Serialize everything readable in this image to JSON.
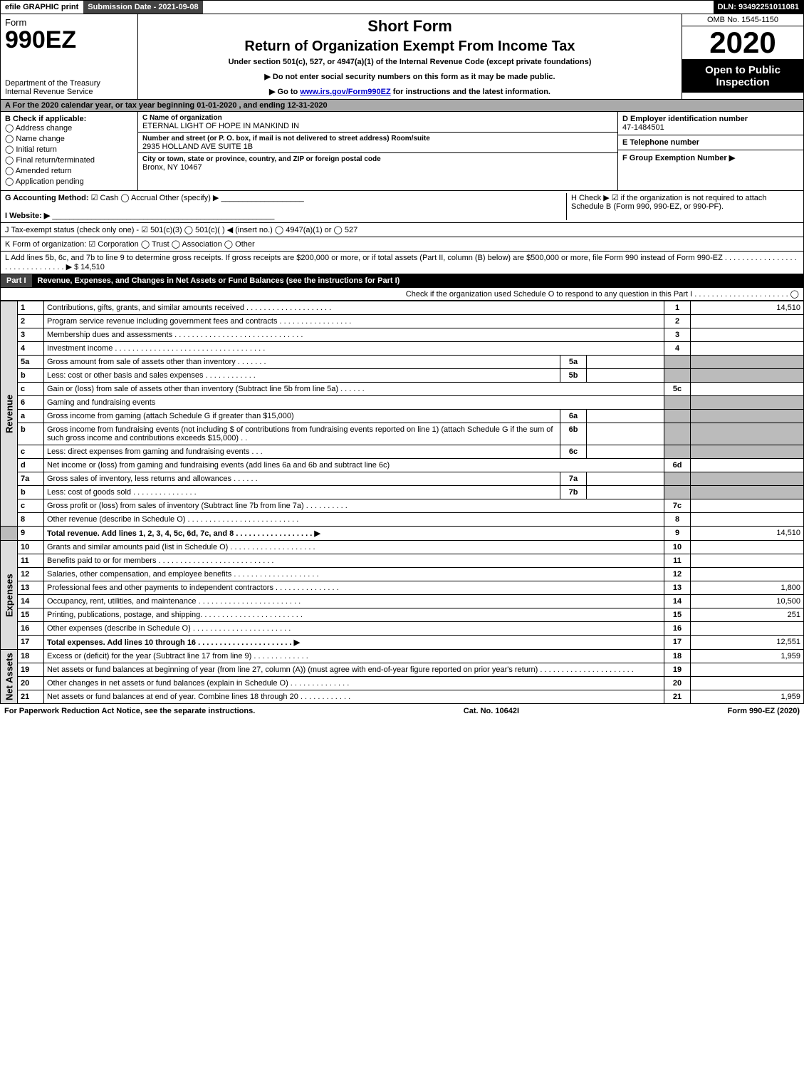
{
  "topbar": {
    "efile": "efile GRAPHIC print",
    "subdate": "Submission Date - 2021-09-08",
    "dln": "DLN: 93492251011081"
  },
  "header": {
    "form_label": "Form",
    "form_number": "990EZ",
    "dept": "Department of the Treasury\nInternal Revenue Service",
    "short_form": "Short Form",
    "title": "Return of Organization Exempt From Income Tax",
    "subtitle": "Under section 501(c), 527, or 4947(a)(1) of the Internal Revenue Code (except private foundations)",
    "note1": "▶ Do not enter social security numbers on this form as it may be made public.",
    "note2_pre": "▶ Go to ",
    "note2_link": "www.irs.gov/Form990EZ",
    "note2_post": " for instructions and the latest information.",
    "omb": "OMB No. 1545-1150",
    "year": "2020",
    "open_public": "Open to Public Inspection"
  },
  "rowA": "A  For the 2020 calendar year, or tax year beginning 01-01-2020 , and ending 12-31-2020",
  "B": {
    "header": "B  Check if applicable:",
    "items": [
      "Address change",
      "Name change",
      "Initial return",
      "Final return/terminated",
      "Amended return",
      "Application pending"
    ]
  },
  "C": {
    "name_label": "C Name of organization",
    "name": "ETERNAL LIGHT OF HOPE IN MANKIND IN",
    "addr_label": "Number and street (or P. O. box, if mail is not delivered to street address)      Room/suite",
    "addr": "2935 HOLLAND AVE SUITE 1B",
    "city_label": "City or town, state or province, country, and ZIP or foreign postal code",
    "city": "Bronx, NY  10467"
  },
  "D": {
    "ein_label": "D Employer identification number",
    "ein": "47-1484501",
    "phone_label": "E Telephone number",
    "group_label": "F Group Exemption Number   ▶"
  },
  "G": {
    "label": "G Accounting Method:",
    "options": "☑ Cash  ◯ Accrual   Other (specify) ▶",
    "H": "H   Check ▶  ☑  if the organization is not required to attach Schedule B (Form 990, 990-EZ, or 990-PF)."
  },
  "I": {
    "label": "I Website: ▶"
  },
  "J": {
    "label": "J Tax-exempt status (check only one) -  ☑ 501(c)(3) ◯ 501(c)(  ) ◀ (insert no.) ◯ 4947(a)(1) or ◯ 527"
  },
  "K": {
    "label": "K Form of organization:   ☑ Corporation  ◯ Trust  ◯ Association  ◯ Other"
  },
  "L": {
    "text": "L Add lines 5b, 6c, and 7b to line 9 to determine gross receipts. If gross receipts are $200,000 or more, or if total assets (Part II, column (B) below) are $500,000 or more, file Form 990 instead of Form 990-EZ  . . . . . . . . . . . . . . . . . . . . . . . . . . . . . . .  ▶ $ 14,510"
  },
  "partI": {
    "tag": "Part I",
    "title": "Revenue, Expenses, and Changes in Net Assets or Fund Balances (see the instructions for Part I)",
    "sub": "Check if the organization used Schedule O to respond to any question in this Part I . . . . . . . . . . . . . . . . . . . . . .  ◯"
  },
  "sections": {
    "revenue": "Revenue",
    "expenses": "Expenses",
    "netassets": "Net Assets"
  },
  "lines": {
    "1": {
      "d": "Contributions, gifts, grants, and similar amounts received  . . . . . . . . . . . . . . . . . . . .",
      "n": "1",
      "a": "14,510"
    },
    "2": {
      "d": "Program service revenue including government fees and contracts  . . . . . . . . . . . . . . . . .",
      "n": "2",
      "a": ""
    },
    "3": {
      "d": "Membership dues and assessments  . . . . . . . . . . . . . . . . . . . . . . . . . . . . . .",
      "n": "3",
      "a": ""
    },
    "4": {
      "d": "Investment income  . . . . . . . . . . . . . . . . . . . . . . . . . . . . . . . . . . .",
      "n": "4",
      "a": ""
    },
    "5a": {
      "d": "Gross amount from sale of assets other than inventory  . . . . . . .",
      "s": "5a"
    },
    "5b": {
      "d": "Less: cost or other basis and sales expenses  . . . . . . . . . . . .",
      "s": "5b"
    },
    "5c": {
      "d": "Gain or (loss) from sale of assets other than inventory (Subtract line 5b from line 5a)  . . . . . .",
      "n": "5c",
      "a": ""
    },
    "6": {
      "d": "Gaming and fundraising events"
    },
    "6a": {
      "d": "Gross income from gaming (attach Schedule G if greater than $15,000)",
      "s": "6a"
    },
    "6b": {
      "d": "Gross income from fundraising events (not including $                     of contributions from fundraising events reported on line 1) (attach Schedule G if the sum of such gross income and contributions exceeds $15,000)    .   .",
      "s": "6b"
    },
    "6c": {
      "d": "Less: direct expenses from gaming and fundraising events       .   .   .",
      "s": "6c"
    },
    "6d": {
      "d": "Net income or (loss) from gaming and fundraising events (add lines 6a and 6b and subtract line 6c)",
      "n": "6d",
      "a": ""
    },
    "7a": {
      "d": "Gross sales of inventory, less returns and allowances  . . . . . .",
      "s": "7a"
    },
    "7b": {
      "d": "Less: cost of goods sold        .   .   .   .   .   .   .   .   .   .   .   .   .   .   .",
      "s": "7b"
    },
    "7c": {
      "d": "Gross profit or (loss) from sales of inventory (Subtract line 7b from line 7a)  . . . . . . . . . .",
      "n": "7c",
      "a": ""
    },
    "8": {
      "d": "Other revenue (describe in Schedule O)  . . . . . . . . . . . . . . . . . . . . . . . . . .",
      "n": "8",
      "a": ""
    },
    "9": {
      "d": "Total revenue. Add lines 1, 2, 3, 4, 5c, 6d, 7c, and 8   . . . . . . . . . . . . . . . . . .   ▶",
      "n": "9",
      "a": "14,510",
      "bold": true
    },
    "10": {
      "d": "Grants and similar amounts paid (list in Schedule O)  . . . . . . . . . . . . . . . . . . . .",
      "n": "10",
      "a": ""
    },
    "11": {
      "d": "Benefits paid to or for members       . . . . . . . . . . . . . . . . . . . . . . . . . . .",
      "n": "11",
      "a": ""
    },
    "12": {
      "d": "Salaries, other compensation, and employee benefits  . . . . . . . . . . . . . . . . . . . .",
      "n": "12",
      "a": ""
    },
    "13": {
      "d": "Professional fees and other payments to independent contractors  . . . . . . . . . . . . . . .",
      "n": "13",
      "a": "1,800"
    },
    "14": {
      "d": "Occupancy, rent, utilities, and maintenance  . . . . . . . . . . . . . . . . . . . . . . . .",
      "n": "14",
      "a": "10,500"
    },
    "15": {
      "d": "Printing, publications, postage, and shipping.   . . . . . . . . . . . . . . . . . . . . . . .",
      "n": "15",
      "a": "251"
    },
    "16": {
      "d": "Other expenses (describe in Schedule O)       . . . . . . . . . . . . . . . . . . . . . . .",
      "n": "16",
      "a": ""
    },
    "17": {
      "d": "Total expenses. Add lines 10 through 16      . . . . . . . . . . . . . . . . . . . . . .  ▶",
      "n": "17",
      "a": "12,551",
      "bold": true
    },
    "18": {
      "d": "Excess or (deficit) for the year (Subtract line 17 from line 9)         .   .   .   .   .   .   .   .   .   .   .   .   .",
      "n": "18",
      "a": "1,959"
    },
    "19": {
      "d": "Net assets or fund balances at beginning of year (from line 27, column (A)) (must agree with end-of-year figure reported on prior year's return)  . . . . . . . . . . . . . . . . . . . . . .",
      "n": "19",
      "a": ""
    },
    "20": {
      "d": "Other changes in net assets or fund balances (explain in Schedule O)  . . . . . . . . . . . . . .",
      "n": "20",
      "a": ""
    },
    "21": {
      "d": "Net assets or fund balances at end of year. Combine lines 18 through 20  . . . . . . . . . . . .",
      "n": "21",
      "a": "1,959"
    }
  },
  "footer": {
    "left": "For Paperwork Reduction Act Notice, see the separate instructions.",
    "mid": "Cat. No. 10642I",
    "right": "Form 990-EZ (2020)"
  }
}
